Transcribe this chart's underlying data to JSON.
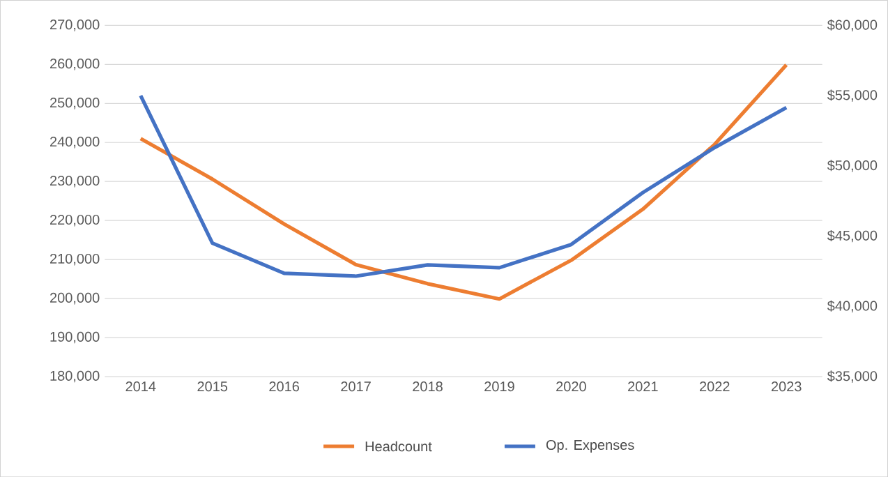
{
  "chart_data": {
    "type": "line",
    "categories": [
      "2014",
      "2015",
      "2016",
      "2017",
      "2018",
      "2019",
      "2020",
      "2021",
      "2022",
      "2023"
    ],
    "series": [
      {
        "name": "Headcount",
        "color": "#ed7d31",
        "values": [
          241000,
          230600,
          219100,
          208700,
          203800,
          199900,
          209800,
          222900,
          239500,
          259900
        ]
      },
      {
        "name": "Op. Expenses",
        "color": "#4472c4",
        "axis": "y2",
        "values": [
          55000,
          44500,
          42350,
          42150,
          42950,
          42750,
          44400,
          48100,
          51300,
          54150
        ]
      }
    ],
    "ylim": [
      180000,
      270000
    ],
    "yticks": [
      {
        "value": 180000,
        "label": "180,000"
      },
      {
        "value": 190000,
        "label": "190,000"
      },
      {
        "value": 200000,
        "label": "200,000"
      },
      {
        "value": 210000,
        "label": "210,000"
      },
      {
        "value": 220000,
        "label": "220,000"
      },
      {
        "value": 230000,
        "label": "230,000"
      },
      {
        "value": 240000,
        "label": "240,000"
      },
      {
        "value": 250000,
        "label": "250,000"
      },
      {
        "value": 260000,
        "label": "260,000"
      },
      {
        "value": 270000,
        "label": "270,000"
      }
    ],
    "y2lim": [
      35000,
      60000
    ],
    "y2ticks": [
      {
        "value": 35000,
        "label": "$35,000"
      },
      {
        "value": 40000,
        "label": "$40,000"
      },
      {
        "value": 45000,
        "label": "$45,000"
      },
      {
        "value": 50000,
        "label": "$50,000"
      },
      {
        "value": 55000,
        "label": "$55,000"
      },
      {
        "value": 60000,
        "label": "$60,000"
      }
    ],
    "grid": "y",
    "legend": "bottom",
    "marker": "none",
    "line_style": "solid"
  }
}
